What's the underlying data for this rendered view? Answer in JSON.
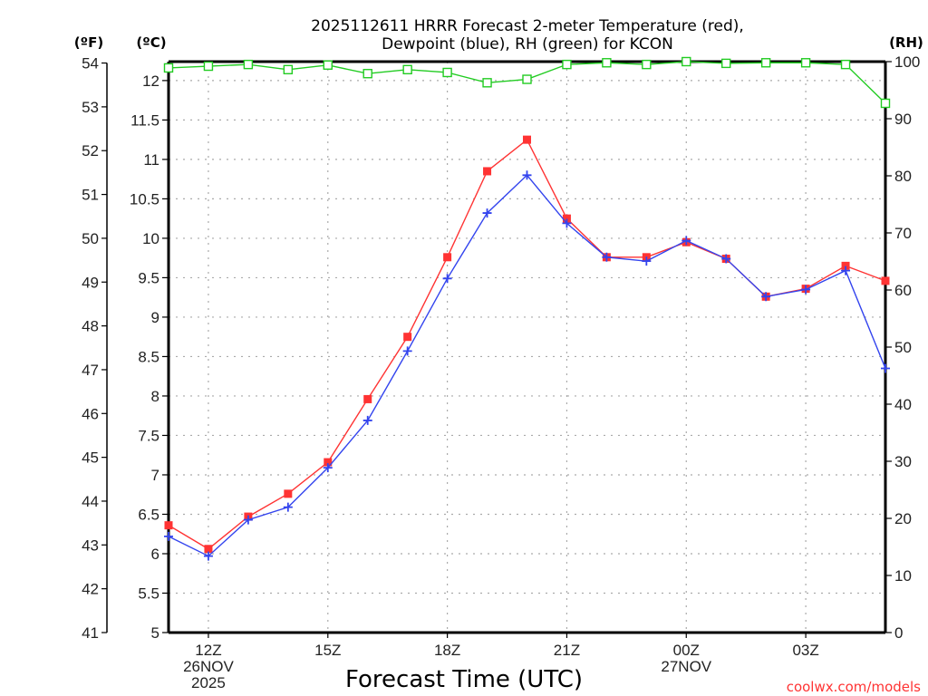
{
  "chart_data": {
    "type": "line",
    "title_lines": [
      "2025112611 HRRR Forecast 2-meter Temperature (red),",
      "Dewpoint (blue), RH (green) for KCON"
    ],
    "xlabel": "Forecast Time (UTC)",
    "credit": "coolwx.com/models",
    "units": {
      "fahrenheit": "(ºF)",
      "celsius": "(ºC)",
      "rh": "(RH)"
    },
    "x": [
      "11Z",
      "12Z",
      "13Z",
      "14Z",
      "15Z",
      "16Z",
      "17Z",
      "18Z",
      "19Z",
      "20Z",
      "21Z",
      "22Z",
      "23Z",
      "00Z",
      "01Z",
      "02Z",
      "03Z",
      "04Z",
      "05Z"
    ],
    "x_ticks": [
      {
        "index": 1,
        "lines": [
          "12Z",
          "26NOV",
          "2025"
        ]
      },
      {
        "index": 4,
        "lines": [
          "15Z"
        ]
      },
      {
        "index": 7,
        "lines": [
          "18Z"
        ]
      },
      {
        "index": 10,
        "lines": [
          "21Z"
        ]
      },
      {
        "index": 13,
        "lines": [
          "00Z",
          "27NOV"
        ]
      },
      {
        "index": 16,
        "lines": [
          "03Z"
        ]
      }
    ],
    "celsius_axis": {
      "range": [
        5,
        12.24
      ],
      "ticks": [
        5,
        5.5,
        6,
        6.5,
        7,
        7.5,
        8,
        8.5,
        9,
        9.5,
        10,
        10.5,
        11,
        11.5,
        12
      ],
      "tick_labels": [
        "5",
        "5.5",
        "6",
        "6.5",
        "7",
        "7.5",
        "8",
        "8.5",
        "9",
        "9.5",
        "10",
        "10.5",
        "11",
        "11.5",
        "12"
      ]
    },
    "fahrenheit_axis": {
      "ticks": [
        41,
        42,
        43,
        44,
        45,
        46,
        47,
        48,
        49,
        50,
        51,
        52,
        53,
        54
      ],
      "tick_labels": [
        "41",
        "42",
        "43",
        "44",
        "45",
        "46",
        "47",
        "48",
        "49",
        "50",
        "51",
        "52",
        "53",
        "54"
      ]
    },
    "rh_axis": {
      "range": [
        0,
        100
      ],
      "ticks": [
        0,
        10,
        20,
        30,
        40,
        50,
        60,
        70,
        80,
        90,
        100
      ],
      "tick_labels": [
        "0",
        "10",
        "20",
        "30",
        "40",
        "50",
        "60",
        "70",
        "80",
        "90",
        "100"
      ]
    },
    "grid": true,
    "series": [
      {
        "name": "Temperature",
        "axis": "celsius",
        "color": "#ff3333",
        "marker": "filled-square",
        "values": [
          6.36,
          6.06,
          6.47,
          6.76,
          7.16,
          7.96,
          8.75,
          9.76,
          10.85,
          11.25,
          10.25,
          9.76,
          9.76,
          9.95,
          9.74,
          9.26,
          9.36,
          9.65,
          9.46
        ]
      },
      {
        "name": "Dewpoint",
        "axis": "celsius",
        "color": "#3344ee",
        "marker": "plus",
        "values": [
          6.22,
          5.97,
          6.43,
          6.59,
          7.09,
          7.69,
          8.57,
          9.49,
          10.32,
          10.8,
          10.19,
          9.76,
          9.71,
          9.97,
          9.74,
          9.26,
          9.35,
          9.59,
          8.35
        ]
      },
      {
        "name": "RH",
        "axis": "rh",
        "color": "#22cc22",
        "marker": "open-square",
        "values": [
          98.9,
          99.2,
          99.5,
          98.6,
          99.4,
          97.9,
          98.6,
          98.1,
          96.3,
          96.9,
          99.5,
          99.8,
          99.5,
          100,
          99.7,
          99.8,
          99.8,
          99.5,
          92.7
        ]
      }
    ]
  }
}
